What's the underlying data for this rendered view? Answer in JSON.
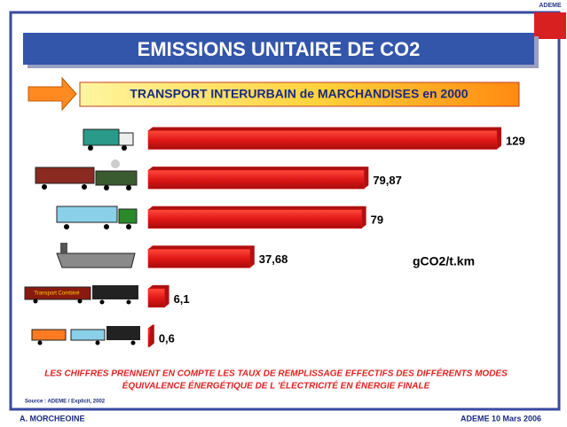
{
  "chart_data": {
    "type": "bar",
    "orientation": "horizontal",
    "title": "EMISSIONS UNITAIRE DE CO2",
    "subtitle": "TRANSPORT INTERURBAIN de MARCHANDISES en 2000",
    "categories": [
      null,
      null,
      null,
      null,
      null,
      null
    ],
    "values": [
      129,
      79.87,
      79,
      37.68,
      6.1,
      0.6
    ],
    "value_labels": [
      "129",
      "79,87",
      "79",
      "37,68",
      "6,1",
      "0,6"
    ],
    "color": "#e01818",
    "unit_label": "gCO2/t.km",
    "icon_label": "Transport Combiné",
    "notes": [
      "LES CHIFFRES PRENNENT EN COMPTE LES TAUX DE REMPLISSAGE EFFECTIFS DES DIFFÉRENTS MODES",
      "ÉQUIVALENCE ÉNERGÉTIQUE DE L 'ÉLECTRICITÉ EN  ÉNERGIE FINALE"
    ],
    "source": "Source : ADEME / Explicit, 2002",
    "footer_left": "A. MORCHEOINE",
    "footer_right": "ADEME 10 Mars 2006",
    "logo": "ADEME"
  }
}
